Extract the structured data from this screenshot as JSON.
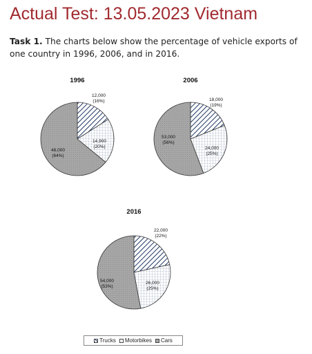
{
  "header": {
    "title": "Actual Test: 13.05.2023 Vietnam",
    "task_label": "Task 1.",
    "task_text": "The charts below show the percentage of vehicle exports of one country in 1996, 2006, and in 2016."
  },
  "chart_data": [
    {
      "type": "pie",
      "title": "1996",
      "categories": [
        "Trucks",
        "Motorbikes",
        "Cars"
      ],
      "values": [
        12000,
        14900,
        48000
      ],
      "percent": [
        16,
        20,
        64
      ],
      "labels": [
        "12,000",
        "14,900",
        "48,000"
      ],
      "percent_labels": [
        "(16%)",
        "(20%)",
        "(64%)"
      ]
    },
    {
      "type": "pie",
      "title": "2006",
      "categories": [
        "Trucks",
        "Motorbikes",
        "Cars"
      ],
      "values": [
        18000,
        24000,
        53000
      ],
      "percent": [
        19,
        25,
        56
      ],
      "labels": [
        "18,000",
        "24,000",
        "53,000"
      ],
      "percent_labels": [
        "(19%)",
        "(25%)",
        "(56%)"
      ]
    },
    {
      "type": "pie",
      "title": "2016",
      "categories": [
        "Trucks",
        "Motorbikes",
        "Cars"
      ],
      "values": [
        22000,
        26000,
        54000
      ],
      "percent": [
        22,
        25,
        53
      ],
      "labels": [
        "22,000",
        "26,000",
        "54,000"
      ],
      "percent_labels": [
        "(22%)",
        "(25%)",
        "(53%)"
      ]
    }
  ],
  "legend": [
    "Trucks",
    "Motorbikes",
    "Cars"
  ],
  "colors": {
    "title": "#a12a2f",
    "cars": "#a6a6a6",
    "trucks_stripe": "#1f3864",
    "grid": "#8a9ab3"
  }
}
